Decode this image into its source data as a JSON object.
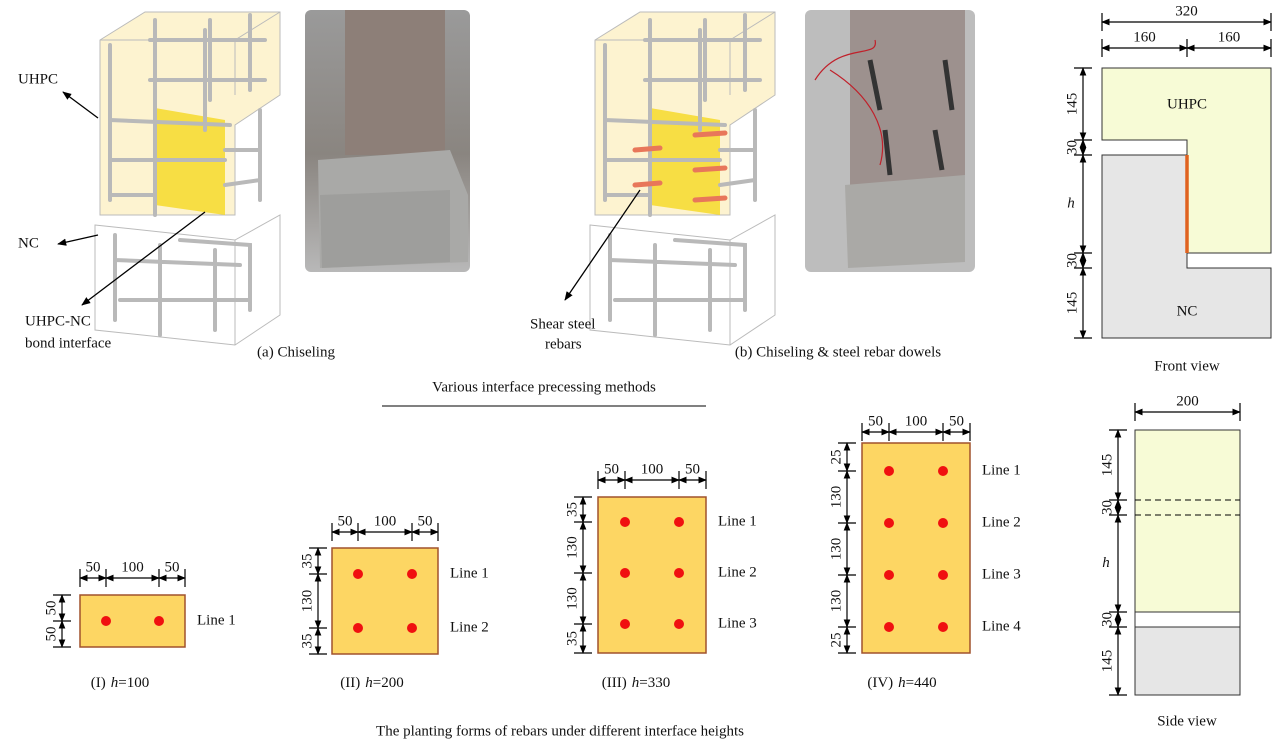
{
  "panel_a": {
    "caption": "(a) Chiseling",
    "labels": [
      "UHPC",
      "NC",
      "UHPC-NC",
      "bond interface"
    ]
  },
  "panel_b": {
    "caption": "(b) Chiseling & steel rebar dowels",
    "labels": [
      "Shear steel",
      "rebars"
    ]
  },
  "methods_title": "Various interface precessing methods",
  "front_view": {
    "caption": "Front view",
    "width": 320,
    "half_widths": [
      160,
      160
    ],
    "heights": [
      145,
      30,
      "h",
      30,
      145
    ],
    "zones": [
      "UHPC",
      "NC"
    ]
  },
  "side_view": {
    "caption": "Side view",
    "width": 200,
    "heights": [
      145,
      30,
      "h",
      30,
      145
    ]
  },
  "layouts": [
    {
      "label": "(I)",
      "var": "h",
      "eq": "=100",
      "widths": [
        50,
        100,
        50
      ],
      "heights": [
        50,
        50
      ],
      "lines": [
        "Line 1"
      ]
    },
    {
      "label": "(II)",
      "var": "h",
      "eq": "=200",
      "widths": [
        50,
        100,
        50
      ],
      "heights": [
        35,
        130,
        35
      ],
      "lines": [
        "Line 1",
        "Line 2"
      ]
    },
    {
      "label": "(III)",
      "var": "h",
      "eq": "=330",
      "widths": [
        50,
        100,
        50
      ],
      "heights": [
        35,
        130,
        130,
        35
      ],
      "lines": [
        "Line 1",
        "Line 2",
        "Line 3"
      ]
    },
    {
      "label": "(IV)",
      "var": "h",
      "eq": "=440",
      "widths": [
        50,
        100,
        50
      ],
      "heights": [
        25,
        130,
        130,
        130,
        25
      ],
      "lines": [
        "Line 1",
        "Line 2",
        "Line 3",
        "Line 4"
      ]
    }
  ],
  "layouts_title": "The planting forms of rebars under different interface heights"
}
